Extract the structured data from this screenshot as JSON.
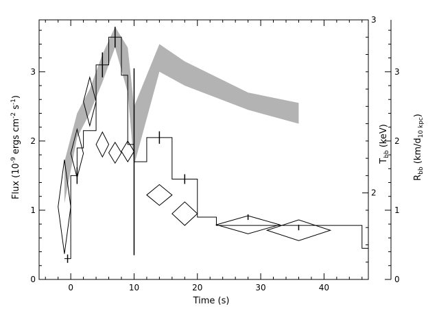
{
  "chart_data": {
    "type": "line",
    "title": "",
    "xlabel": "Time (s)",
    "ylabel": "Flux (10^-9 ergs cm^-2 s^-1)",
    "ylabel_parts": [
      "Flux (10",
      "-9",
      " ergs cm",
      "-2",
      " s",
      "-1",
      ")"
    ],
    "y2label": "T_bb (keV)",
    "y2label_parts": [
      "T",
      "bb",
      " (keV)"
    ],
    "y3label": "R_bb (km/d_10 kpc)",
    "y3label_parts": [
      "R",
      "bb",
      " (km/d",
      "10 kpc",
      ")"
    ],
    "xlim": [
      -5,
      47
    ],
    "ylim": [
      0,
      3.75
    ],
    "y2lim": [
      1.5,
      3.0
    ],
    "y3lim": [
      0,
      3.75
    ],
    "x_ticks": [
      0,
      10,
      20,
      30,
      40
    ],
    "x_tick_labels": [
      "0",
      "10",
      "20",
      "30",
      "40"
    ],
    "y_ticks": [
      0,
      1,
      2,
      3
    ],
    "y_tick_labels": [
      "0",
      "1",
      "2",
      "3"
    ],
    "y2_ticks": [
      2,
      3
    ],
    "y2_tick_labels": [
      "2",
      "3"
    ],
    "y3_ticks": [
      0,
      1,
      2,
      3
    ],
    "y3_tick_labels": [
      "0",
      "1",
      "2",
      "3"
    ],
    "grid": false,
    "legend": "none",
    "series": [
      {
        "style": "histogram",
        "color": "#000000",
        "edges": [
          -1,
          0,
          1,
          2,
          4,
          6,
          8,
          9,
          10,
          12,
          16,
          20,
          23,
          32,
          46,
          47
        ],
        "values": [
          0.3,
          1.5,
          1.9,
          2.15,
          3.1,
          3.5,
          2.95,
          1.95,
          1.7,
          2.05,
          1.45,
          0.9,
          0.78,
          0.78,
          0.45
        ],
        "error_points": [
          {
            "x": -0.5,
            "y": 0.3,
            "yerr": 0.06
          },
          {
            "x": 1,
            "y": 1.5,
            "yerr": 0.12
          },
          {
            "x": 5,
            "y": 3.1,
            "yerr": 0.18
          },
          {
            "x": 7,
            "y": 3.5,
            "yerr": 0.15
          },
          {
            "x": 10,
            "y": 1.7,
            "yerr": 1.35
          },
          {
            "x": 14,
            "y": 2.05,
            "yerr": 0.09
          },
          {
            "x": 18,
            "y": 1.45,
            "yerr": 0.07
          },
          {
            "x": 28,
            "y": 0.9,
            "yerr": 0.04
          },
          {
            "x": 36,
            "y": 0.75,
            "yerr": 0.04
          }
        ]
      },
      {
        "style": "band",
        "color": "#b3b3b3",
        "x": [
          -1,
          1,
          3,
          5,
          7,
          9,
          10,
          14,
          18,
          28,
          36
        ],
        "lower": [
          1.1,
          2.05,
          2.4,
          2.85,
          3.35,
          2.7,
          1.65,
          3.0,
          2.8,
          2.45,
          2.25
        ],
        "upper": [
          1.7,
          2.4,
          2.75,
          3.25,
          3.65,
          3.35,
          2.5,
          3.4,
          3.15,
          2.7,
          2.55
        ]
      },
      {
        "style": "diamonds",
        "color": "#000000",
        "points": [
          {
            "x": -1,
            "y": 1.05,
            "dx": 1,
            "dy": 0.68
          },
          {
            "x": 1,
            "y": 1.82,
            "dx": 1,
            "dy": 0.35
          },
          {
            "x": 3,
            "y": 2.57,
            "dx": 1,
            "dy": 0.35
          },
          {
            "x": 5,
            "y": 1.95,
            "dx": 1,
            "dy": 0.18
          },
          {
            "x": 7,
            "y": 1.83,
            "dx": 1,
            "dy": 0.15
          },
          {
            "x": 9,
            "y": 1.85,
            "dx": 1,
            "dy": 0.15
          },
          {
            "x": 14,
            "y": 1.22,
            "dx": 2,
            "dy": 0.15
          },
          {
            "x": 18,
            "y": 0.95,
            "dx": 2,
            "dy": 0.17
          },
          {
            "x": 28,
            "y": 0.79,
            "dx": 5,
            "dy": 0.13
          },
          {
            "x": 36,
            "y": 0.71,
            "dx": 5,
            "dy": 0.15
          }
        ]
      }
    ]
  }
}
